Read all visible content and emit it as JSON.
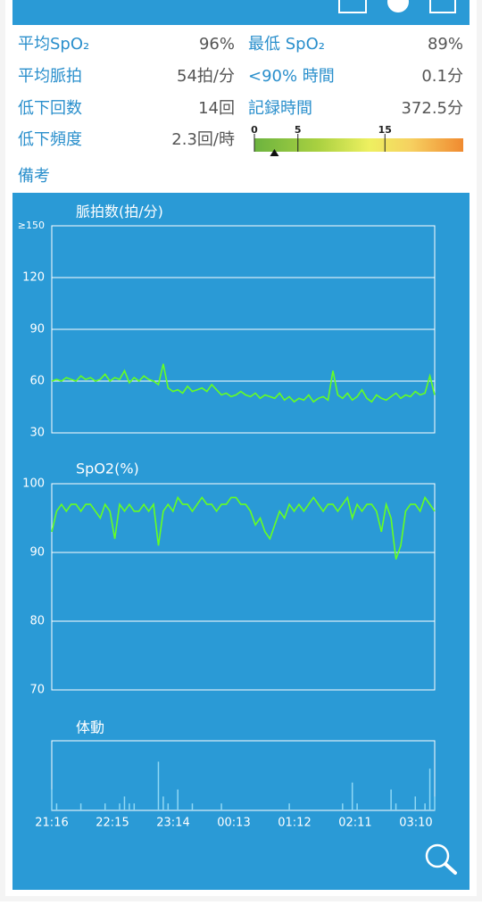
{
  "stats": [
    [
      {
        "label": "平均SpO₂",
        "value": "96%"
      },
      {
        "label": "最低 SpO₂",
        "value": "89%"
      }
    ],
    [
      {
        "label": "平均脈拍",
        "value": "54拍/分"
      },
      {
        "label": "<90% 時間",
        "value": "0.1分"
      }
    ],
    [
      {
        "label": "低下回数",
        "value": "14回"
      },
      {
        "label": "記録時間",
        "value": "372.5分"
      }
    ],
    [
      {
        "label": "低下頻度",
        "value": "2.3回/時"
      }
    ]
  ],
  "gauge": {
    "xlim": [
      0,
      24
    ],
    "xticks": [
      0,
      5,
      15
    ],
    "value": 2.3
  },
  "note": "備考",
  "chart_data": [
    {
      "type": "line",
      "title": "脈拍数(拍/分)",
      "color": "#66ff22",
      "ylim": [
        30,
        150
      ],
      "yticks": [
        30,
        60,
        90,
        120,
        {
          "value": 150,
          "label": "≥150"
        }
      ],
      "grid": true,
      "values": [
        60,
        61,
        60,
        62,
        61,
        60,
        63,
        61,
        62,
        60,
        61,
        64,
        60,
        62,
        61,
        66,
        59,
        62,
        60,
        63,
        61,
        60,
        58,
        70,
        56,
        54,
        55,
        53,
        57,
        54,
        55,
        56,
        54,
        58,
        55,
        52,
        53,
        51,
        52,
        54,
        52,
        51,
        53,
        50,
        52,
        51,
        50,
        53,
        49,
        51,
        48,
        50,
        49,
        52,
        48,
        50,
        51,
        49,
        66,
        52,
        50,
        53,
        49,
        51,
        55,
        50,
        48,
        52,
        50,
        49,
        51,
        53,
        50,
        52,
        51,
        54,
        52,
        53,
        63,
        52
      ]
    },
    {
      "type": "line",
      "title": "SpO2(%)",
      "color": "#66ff22",
      "ylim": [
        70,
        100
      ],
      "yticks": [
        70,
        80,
        90,
        100
      ],
      "grid": true,
      "values": [
        93,
        96,
        97,
        96,
        97,
        97,
        96,
        97,
        97,
        96,
        95,
        97,
        96,
        92,
        97,
        96,
        97,
        96,
        96,
        97,
        96,
        97,
        91,
        96,
        97,
        96,
        98,
        97,
        97,
        96,
        97,
        98,
        97,
        97,
        96,
        97,
        97,
        98,
        98,
        97,
        97,
        96,
        94,
        95,
        93,
        92,
        94,
        96,
        95,
        97,
        96,
        97,
        96,
        97,
        98,
        97,
        96,
        97,
        97,
        96,
        97,
        98,
        95,
        97,
        96,
        97,
        97,
        96,
        93,
        97,
        95,
        89,
        91,
        96,
        97,
        97,
        96,
        98,
        97,
        96
      ]
    },
    {
      "type": "bar",
      "title": "体動",
      "color": "#8fd8f5",
      "ylim": [
        0,
        10
      ],
      "values": [
        3,
        1,
        0,
        0,
        0,
        0,
        1,
        0,
        0,
        0,
        0,
        1,
        0,
        0,
        1,
        2,
        1,
        1,
        0,
        0,
        0,
        0,
        7,
        2,
        1,
        0,
        3,
        0,
        0,
        1,
        0,
        0,
        0,
        0,
        0,
        1,
        0,
        0,
        0,
        0,
        0,
        0,
        0,
        0,
        0,
        0,
        0,
        0,
        0,
        1,
        0,
        0,
        0,
        0,
        0,
        0,
        0,
        0,
        0,
        0,
        1,
        0,
        4,
        1,
        0,
        0,
        0,
        0,
        0,
        0,
        3,
        1,
        0,
        0,
        0,
        2,
        0,
        1,
        6,
        2
      ],
      "xtick_labels": [
        "21:16",
        "22:15",
        "23:14",
        "00:13",
        "01:12",
        "02:11",
        "03:10"
      ]
    }
  ]
}
